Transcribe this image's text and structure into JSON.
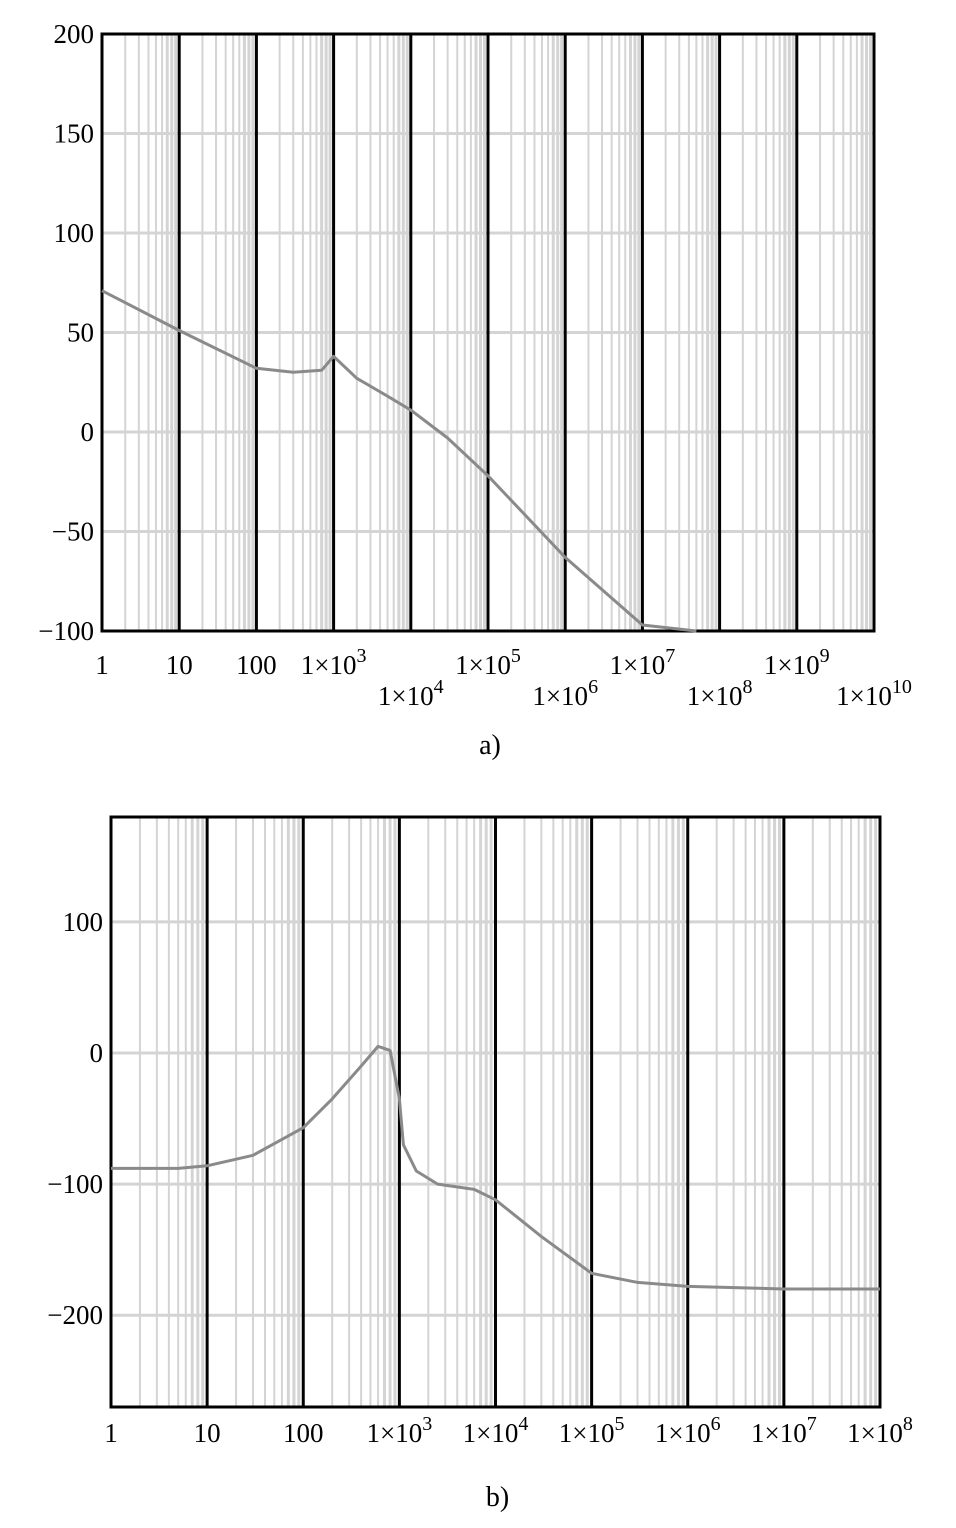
{
  "chart_data": [
    {
      "type": "line",
      "caption": "a)",
      "xscale": "log",
      "xlim": [
        1,
        10000000000
      ],
      "ylim": [
        -100,
        200
      ],
      "grid": true,
      "yticks": [
        {
          "v": 200,
          "label": "200"
        },
        {
          "v": 150,
          "label": "150"
        },
        {
          "v": 100,
          "label": "100"
        },
        {
          "v": 50,
          "label": "50"
        },
        {
          "v": 0,
          "label": "0"
        },
        {
          "v": -50,
          "label": "−50"
        },
        {
          "v": -100,
          "label": "−100"
        }
      ],
      "xticks": [
        {
          "exp": 0,
          "label": "1",
          "row": 0
        },
        {
          "exp": 1,
          "label": "10",
          "row": 0
        },
        {
          "exp": 2,
          "label": "100",
          "row": 0
        },
        {
          "exp": 3,
          "label": "1×10",
          "sup": "3",
          "row": 0
        },
        {
          "exp": 4,
          "label": "1×10",
          "sup": "4",
          "row": 1
        },
        {
          "exp": 5,
          "label": "1×10",
          "sup": "5",
          "row": 0
        },
        {
          "exp": 6,
          "label": "1×10",
          "sup": "6",
          "row": 1
        },
        {
          "exp": 7,
          "label": "1×10",
          "sup": "7",
          "row": 0
        },
        {
          "exp": 8,
          "label": "1×10",
          "sup": "8",
          "row": 1
        },
        {
          "exp": 9,
          "label": "1×10",
          "sup": "9",
          "row": 0
        },
        {
          "exp": 10,
          "label": "1×10",
          "sup": "10",
          "row": 1
        }
      ],
      "series": [
        {
          "x": [
            1,
            10,
            100,
            300,
            700,
            1000,
            2000,
            5000,
            10000,
            30000,
            100000,
            1000000,
            10000000,
            50000000
          ],
          "y": [
            71,
            51,
            32,
            30,
            31,
            38,
            27,
            18,
            11,
            -3,
            -22,
            -63,
            -97,
            -100
          ]
        }
      ]
    },
    {
      "type": "line",
      "caption": "b)",
      "xscale": "log",
      "xlim": [
        1,
        100000000
      ],
      "ylim": [
        -270,
        180
      ],
      "grid": true,
      "yticks": [
        {
          "v": 100,
          "label": "100"
        },
        {
          "v": 0,
          "label": "0"
        },
        {
          "v": -100,
          "label": "−100"
        },
        {
          "v": -200,
          "label": "−200"
        }
      ],
      "xticks": [
        {
          "exp": 0,
          "label": "1",
          "row": 0
        },
        {
          "exp": 1,
          "label": "10",
          "row": 0
        },
        {
          "exp": 2,
          "label": "100",
          "row": 0
        },
        {
          "exp": 3,
          "label": "1×10",
          "sup": "3",
          "row": 0
        },
        {
          "exp": 4,
          "label": "1×10",
          "sup": "4",
          "row": 0
        },
        {
          "exp": 5,
          "label": "1×10",
          "sup": "5",
          "row": 0
        },
        {
          "exp": 6,
          "label": "1×10",
          "sup": "6",
          "row": 0
        },
        {
          "exp": 7,
          "label": "1×10",
          "sup": "7",
          "row": 0
        },
        {
          "exp": 8,
          "label": "1×10",
          "sup": "8",
          "row": 0
        }
      ],
      "series": [
        {
          "x": [
            1,
            5,
            10,
            30,
            100,
            200,
            400,
            600,
            800,
            1000,
            1100,
            1500,
            2500,
            6000,
            10000,
            30000,
            100000,
            300000,
            1000000,
            10000000,
            100000000
          ],
          "y": [
            -88,
            -88,
            -86,
            -78,
            -57,
            -35,
            -10,
            5,
            2,
            -35,
            -70,
            -90,
            -100,
            -104,
            -112,
            -140,
            -168,
            -175,
            -178,
            -180,
            -180
          ]
        }
      ]
    }
  ]
}
